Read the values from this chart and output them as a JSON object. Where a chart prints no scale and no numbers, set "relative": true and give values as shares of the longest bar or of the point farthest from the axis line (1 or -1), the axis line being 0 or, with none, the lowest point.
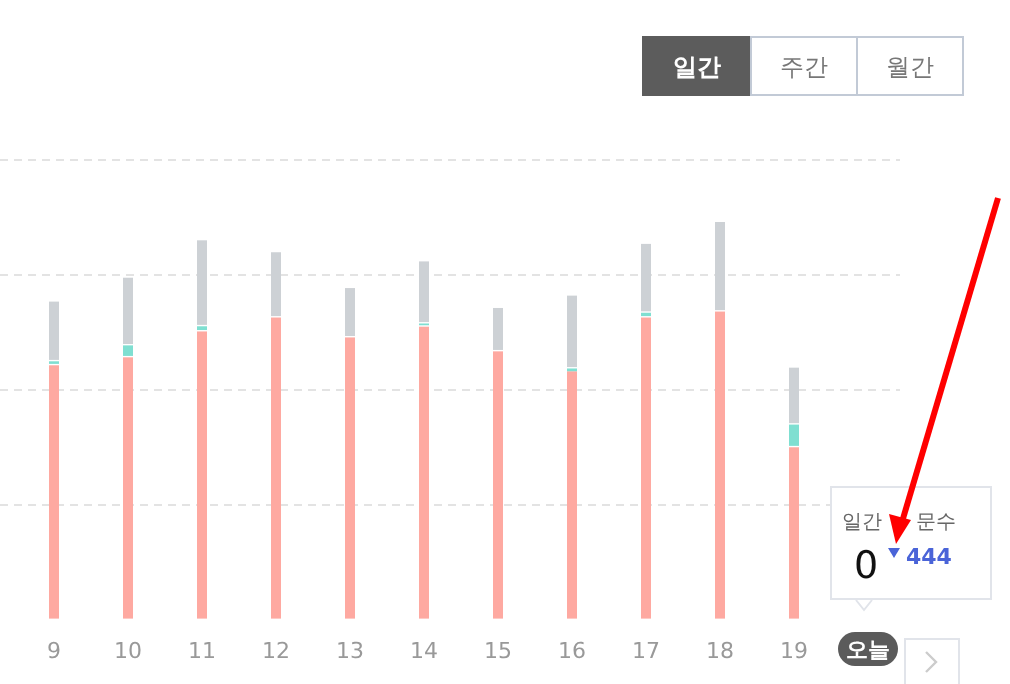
{
  "chart_data": {
    "type": "bar",
    "stacked": true,
    "relative": true,
    "grid": "y",
    "legend": false,
    "categories": [
      "9",
      "10",
      "11",
      "12",
      "13",
      "14",
      "15",
      "16",
      "17",
      "18",
      "19",
      "오늘"
    ],
    "series": [
      {
        "color": "#fea9a1",
        "values": [
          0.64,
          0.66,
          0.725,
          0.76,
          0.71,
          0.737,
          0.675,
          0.625,
          0.76,
          0.775,
          0.434,
          0
        ]
      },
      {
        "color": "#7fdfd1",
        "values": [
          0.01,
          0.03,
          0.013,
          0,
          0,
          0.008,
          0,
          0.007,
          0.012,
          0,
          0.057,
          0
        ]
      },
      {
        "color": "#cdd1d5",
        "values": [
          0.15,
          0.17,
          0.216,
          0.164,
          0.124,
          0.156,
          0.109,
          0.183,
          0.173,
          0.225,
          0.143,
          0
        ]
      }
    ],
    "annotations": [
      "일간",
      "주간",
      "월간",
      "일간",
      "문수",
      "0",
      "444"
    ]
  }
}
